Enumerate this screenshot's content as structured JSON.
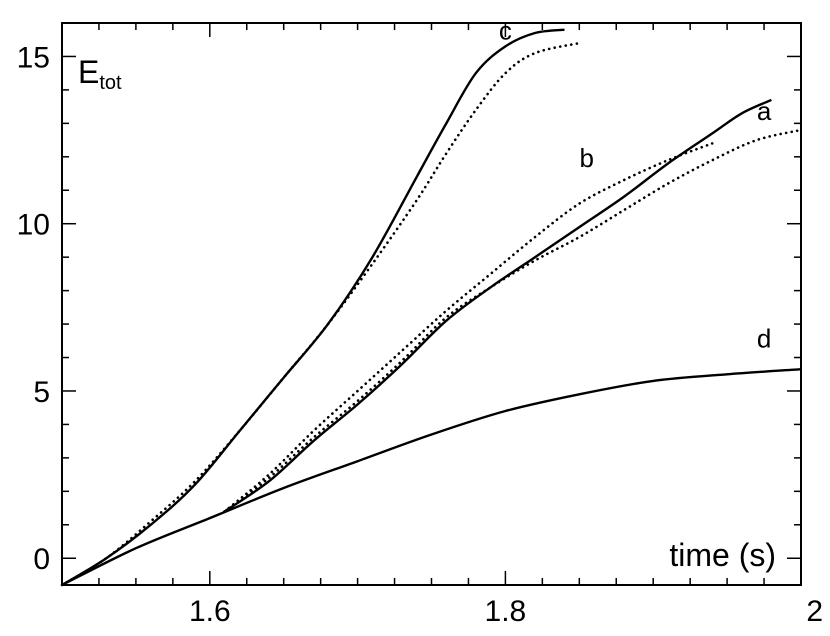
{
  "chart_data": {
    "type": "line",
    "title": "",
    "xlabel": "time (s)",
    "ylabel": {
      "main": "E",
      "sub": "tot"
    },
    "xlim": [
      1.5,
      2.0
    ],
    "ylim": [
      -0.8,
      16.0
    ],
    "x_ticks": [
      1.6,
      1.8,
      2.0
    ],
    "x_tick_labels": [
      "1.6",
      "1.8",
      "2"
    ],
    "y_ticks": [
      0,
      5,
      10,
      15
    ],
    "y_tick_labels": [
      "0",
      "5",
      "10",
      "15"
    ],
    "grid": false,
    "legend": "none",
    "series": [
      {
        "label": "a",
        "style": "solid",
        "points": [
          [
            1.61,
            1.4
          ],
          [
            1.64,
            2.3
          ],
          [
            1.67,
            3.5
          ],
          [
            1.7,
            4.6
          ],
          [
            1.73,
            5.8
          ],
          [
            1.76,
            7.1
          ],
          [
            1.79,
            8.1
          ],
          [
            1.82,
            9.0
          ],
          [
            1.85,
            9.9
          ],
          [
            1.88,
            10.8
          ],
          [
            1.91,
            11.8
          ],
          [
            1.94,
            12.7
          ],
          [
            1.96,
            13.3
          ],
          [
            1.98,
            13.7
          ]
        ]
      },
      {
        "label": "a",
        "style": "dotted",
        "points": [
          [
            1.61,
            1.4
          ],
          [
            1.64,
            2.4
          ],
          [
            1.67,
            3.6
          ],
          [
            1.7,
            4.7
          ],
          [
            1.73,
            5.9
          ],
          [
            1.76,
            7.2
          ],
          [
            1.79,
            8.1
          ],
          [
            1.82,
            8.9
          ],
          [
            1.85,
            9.6
          ],
          [
            1.88,
            10.4
          ],
          [
            1.91,
            11.2
          ],
          [
            1.94,
            11.9
          ],
          [
            1.97,
            12.5
          ],
          [
            2.0,
            12.8
          ]
        ]
      },
      {
        "label": "b",
        "style": "dotted",
        "points": [
          [
            1.61,
            1.4
          ],
          [
            1.64,
            2.5
          ],
          [
            1.67,
            3.8
          ],
          [
            1.7,
            5.0
          ],
          [
            1.73,
            6.2
          ],
          [
            1.76,
            7.4
          ],
          [
            1.79,
            8.5
          ],
          [
            1.82,
            9.6
          ],
          [
            1.85,
            10.6
          ],
          [
            1.88,
            11.3
          ],
          [
            1.91,
            11.9
          ],
          [
            1.94,
            12.4
          ]
        ]
      },
      {
        "label": "c",
        "style": "solid",
        "points": [
          [
            1.5,
            -0.8
          ],
          [
            1.53,
            0.0
          ],
          [
            1.56,
            1.0
          ],
          [
            1.59,
            2.2
          ],
          [
            1.62,
            3.8
          ],
          [
            1.65,
            5.4
          ],
          [
            1.68,
            7.0
          ],
          [
            1.71,
            9.0
          ],
          [
            1.74,
            11.4
          ],
          [
            1.76,
            13.0
          ],
          [
            1.78,
            14.5
          ],
          [
            1.8,
            15.3
          ],
          [
            1.82,
            15.7
          ],
          [
            1.84,
            15.8
          ]
        ]
      },
      {
        "label": "c",
        "style": "dotted",
        "points": [
          [
            1.5,
            -0.8
          ],
          [
            1.53,
            0.0
          ],
          [
            1.56,
            1.1
          ],
          [
            1.59,
            2.3
          ],
          [
            1.62,
            3.8
          ],
          [
            1.65,
            5.4
          ],
          [
            1.68,
            7.0
          ],
          [
            1.71,
            8.8
          ],
          [
            1.74,
            10.7
          ],
          [
            1.76,
            12.1
          ],
          [
            1.78,
            13.4
          ],
          [
            1.8,
            14.5
          ],
          [
            1.82,
            15.1
          ],
          [
            1.85,
            15.4
          ]
        ]
      },
      {
        "label": "d",
        "style": "solid",
        "points": [
          [
            1.5,
            -0.8
          ],
          [
            1.55,
            0.3
          ],
          [
            1.6,
            1.2
          ],
          [
            1.65,
            2.1
          ],
          [
            1.7,
            2.9
          ],
          [
            1.75,
            3.7
          ],
          [
            1.8,
            4.4
          ],
          [
            1.85,
            4.9
          ],
          [
            1.9,
            5.3
          ],
          [
            1.95,
            5.5
          ],
          [
            2.0,
            5.65
          ]
        ]
      }
    ],
    "annotations": [
      {
        "text": "a",
        "x": 1.975,
        "y": 13.1
      },
      {
        "text": "b",
        "x": 1.855,
        "y": 11.7
      },
      {
        "text": "c",
        "x": 1.8,
        "y": 15.5
      },
      {
        "text": "d",
        "x": 1.975,
        "y": 6.3
      }
    ]
  }
}
